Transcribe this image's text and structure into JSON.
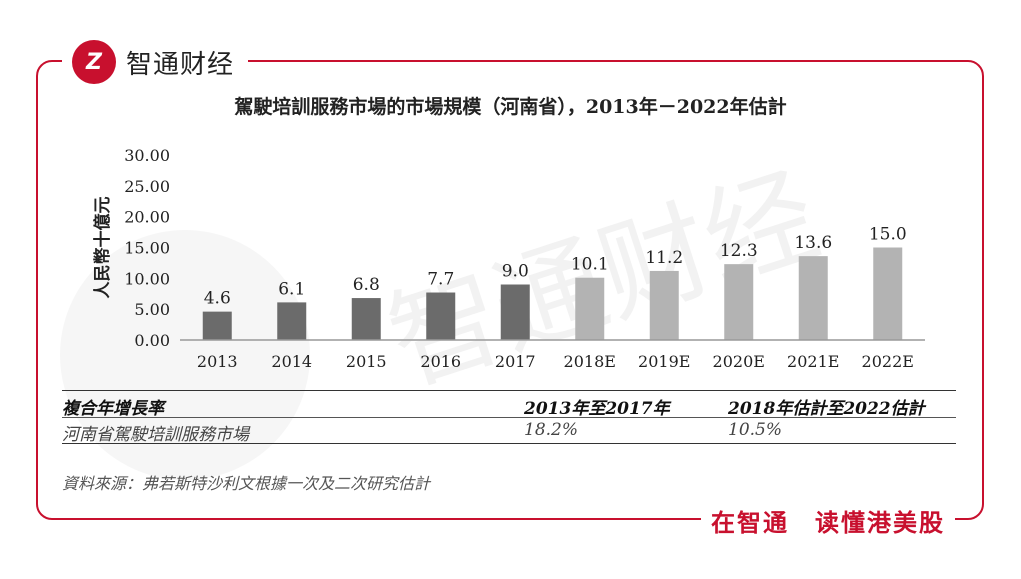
{
  "brand": {
    "logo_text": "Z",
    "name": "智通财经"
  },
  "slogan": "在智通　读懂港美股",
  "watermark": "智通财经",
  "chart_data": {
    "type": "bar",
    "title": "駕駛培訓服務市場的市場規模（河南省），2013年－2022年估計",
    "ylabel": "人民幣十億元",
    "xlabel": "",
    "categories": [
      "2013",
      "2014",
      "2015",
      "2016",
      "2017",
      "2018E",
      "2019E",
      "2020E",
      "2021E",
      "2022E"
    ],
    "values": [
      4.6,
      6.1,
      6.8,
      7.7,
      9.0,
      10.1,
      11.2,
      12.3,
      13.6,
      15.0
    ],
    "value_labels": [
      "4.6",
      "6.1",
      "6.8",
      "7.7",
      "9.0",
      "10.1",
      "11.2",
      "12.3",
      "13.6",
      "15.0"
    ],
    "yticks": [
      "0.00",
      "5.00",
      "10.00",
      "15.00",
      "20.00",
      "25.00",
      "30.00"
    ],
    "ylim": [
      0,
      30
    ],
    "grid": false,
    "colors": {
      "actual": "#6b6b6b",
      "forecast": "#b3b3b3"
    },
    "forecast_start_index": 5
  },
  "table": {
    "header": [
      "複合年增長率",
      "2013年至2017年",
      "2018年估計至2022估計"
    ],
    "row": [
      "河南省駕駛培訓服務市場",
      "18.2%",
      "10.5%"
    ]
  },
  "source": "資料來源：弗若斯特沙利文根據一次及二次研究估計"
}
